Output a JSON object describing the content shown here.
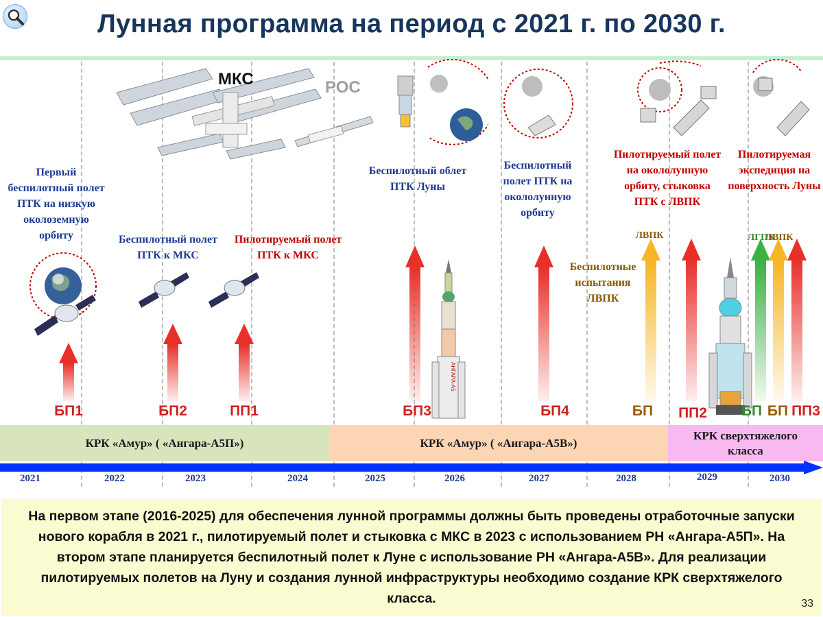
{
  "title": "Лунная программа на период  с 2021 г. по 2030 г.",
  "labels": {
    "iss": "МКС",
    "ros": "РОС"
  },
  "descriptions": {
    "first_flight": "Первый беспилотный полет ПТК на низкую околоземную орбиту",
    "unmanned_iss": "Беспилотный полет ПТК к МКС",
    "manned_iss": "Пилотируемый полет ПТК к МКС",
    "lunar_flyby": "Беспилотный облет ПТК Луны",
    "lunar_orbit": "Беспилотный полет ПТК на окололунную орбиту",
    "lvpk_tests": "Беспилотные испытания ЛВПК",
    "manned_lunar_orbit": "Пилотируемый полет на окололунную орбиту, стыковка ПТК  с ЛВПК",
    "lunar_expedition": "Пилотируемая экспедиция на поверхность Луны"
  },
  "arrow_labels": {
    "lvpk_2028": "ЛВПК",
    "lgpk_2030": "ЛГПК",
    "lvpk_2030": "ЛВПК"
  },
  "rocket_text": "АНГАРА-А5",
  "missions": [
    {
      "id": "bp1",
      "label": "БП1"
    },
    {
      "id": "bp2",
      "label": "БП2"
    },
    {
      "id": "pp1",
      "label": "ПП1"
    },
    {
      "id": "bp3",
      "label": "БП3"
    },
    {
      "id": "bp4",
      "label": "БП4"
    },
    {
      "id": "bp_2028",
      "label": "БП"
    },
    {
      "id": "pp2",
      "label": "ПП2"
    },
    {
      "id": "bp_lgpk",
      "label": "БП"
    },
    {
      "id": "bp_lvpk",
      "label": "БП"
    },
    {
      "id": "pp3",
      "label": "ПП3"
    }
  ],
  "bands": [
    {
      "label": "КРК «Амур» ( «Ангара-А5П»)",
      "color": "#d8e4bc"
    },
    {
      "label": "КРК «Амур» ( «Ангара-А5В»)",
      "color": "#fcd5b4"
    },
    {
      "label": "КРК  сверхтяжелого класса",
      "color": "#f7b9f0"
    }
  ],
  "years": [
    "2021",
    "2022",
    "2023",
    "2024",
    "2025",
    "2026",
    "2027",
    "2028",
    "2029",
    "2030"
  ],
  "bottom_text": "На первом этапе (2016-2025) для обеспечения лунной программы должны быть проведены отработочные запуски нового корабля в 2021 г., пилотируемый полет и стыковка с МКС в 2023 с использованием РН «Ангара-А5П». На втором этапе планируется беспилотный полет к Луне с использование РН «Ангара-А5В».  Для реализации пилотируемых полетов на Луну и создания лунной инфраструктуры необходимо создание КРК сверхтяжелого класса.",
  "page_number": "33",
  "colors": {
    "title": "#17365d",
    "accent_blue": "#1f3a93",
    "timeline": "#0033ff",
    "arrow_red": "#e8302a",
    "arrow_yellow": "#f6b625",
    "arrow_green": "#3cb043",
    "bottom_box": "#fbfbd1"
  }
}
